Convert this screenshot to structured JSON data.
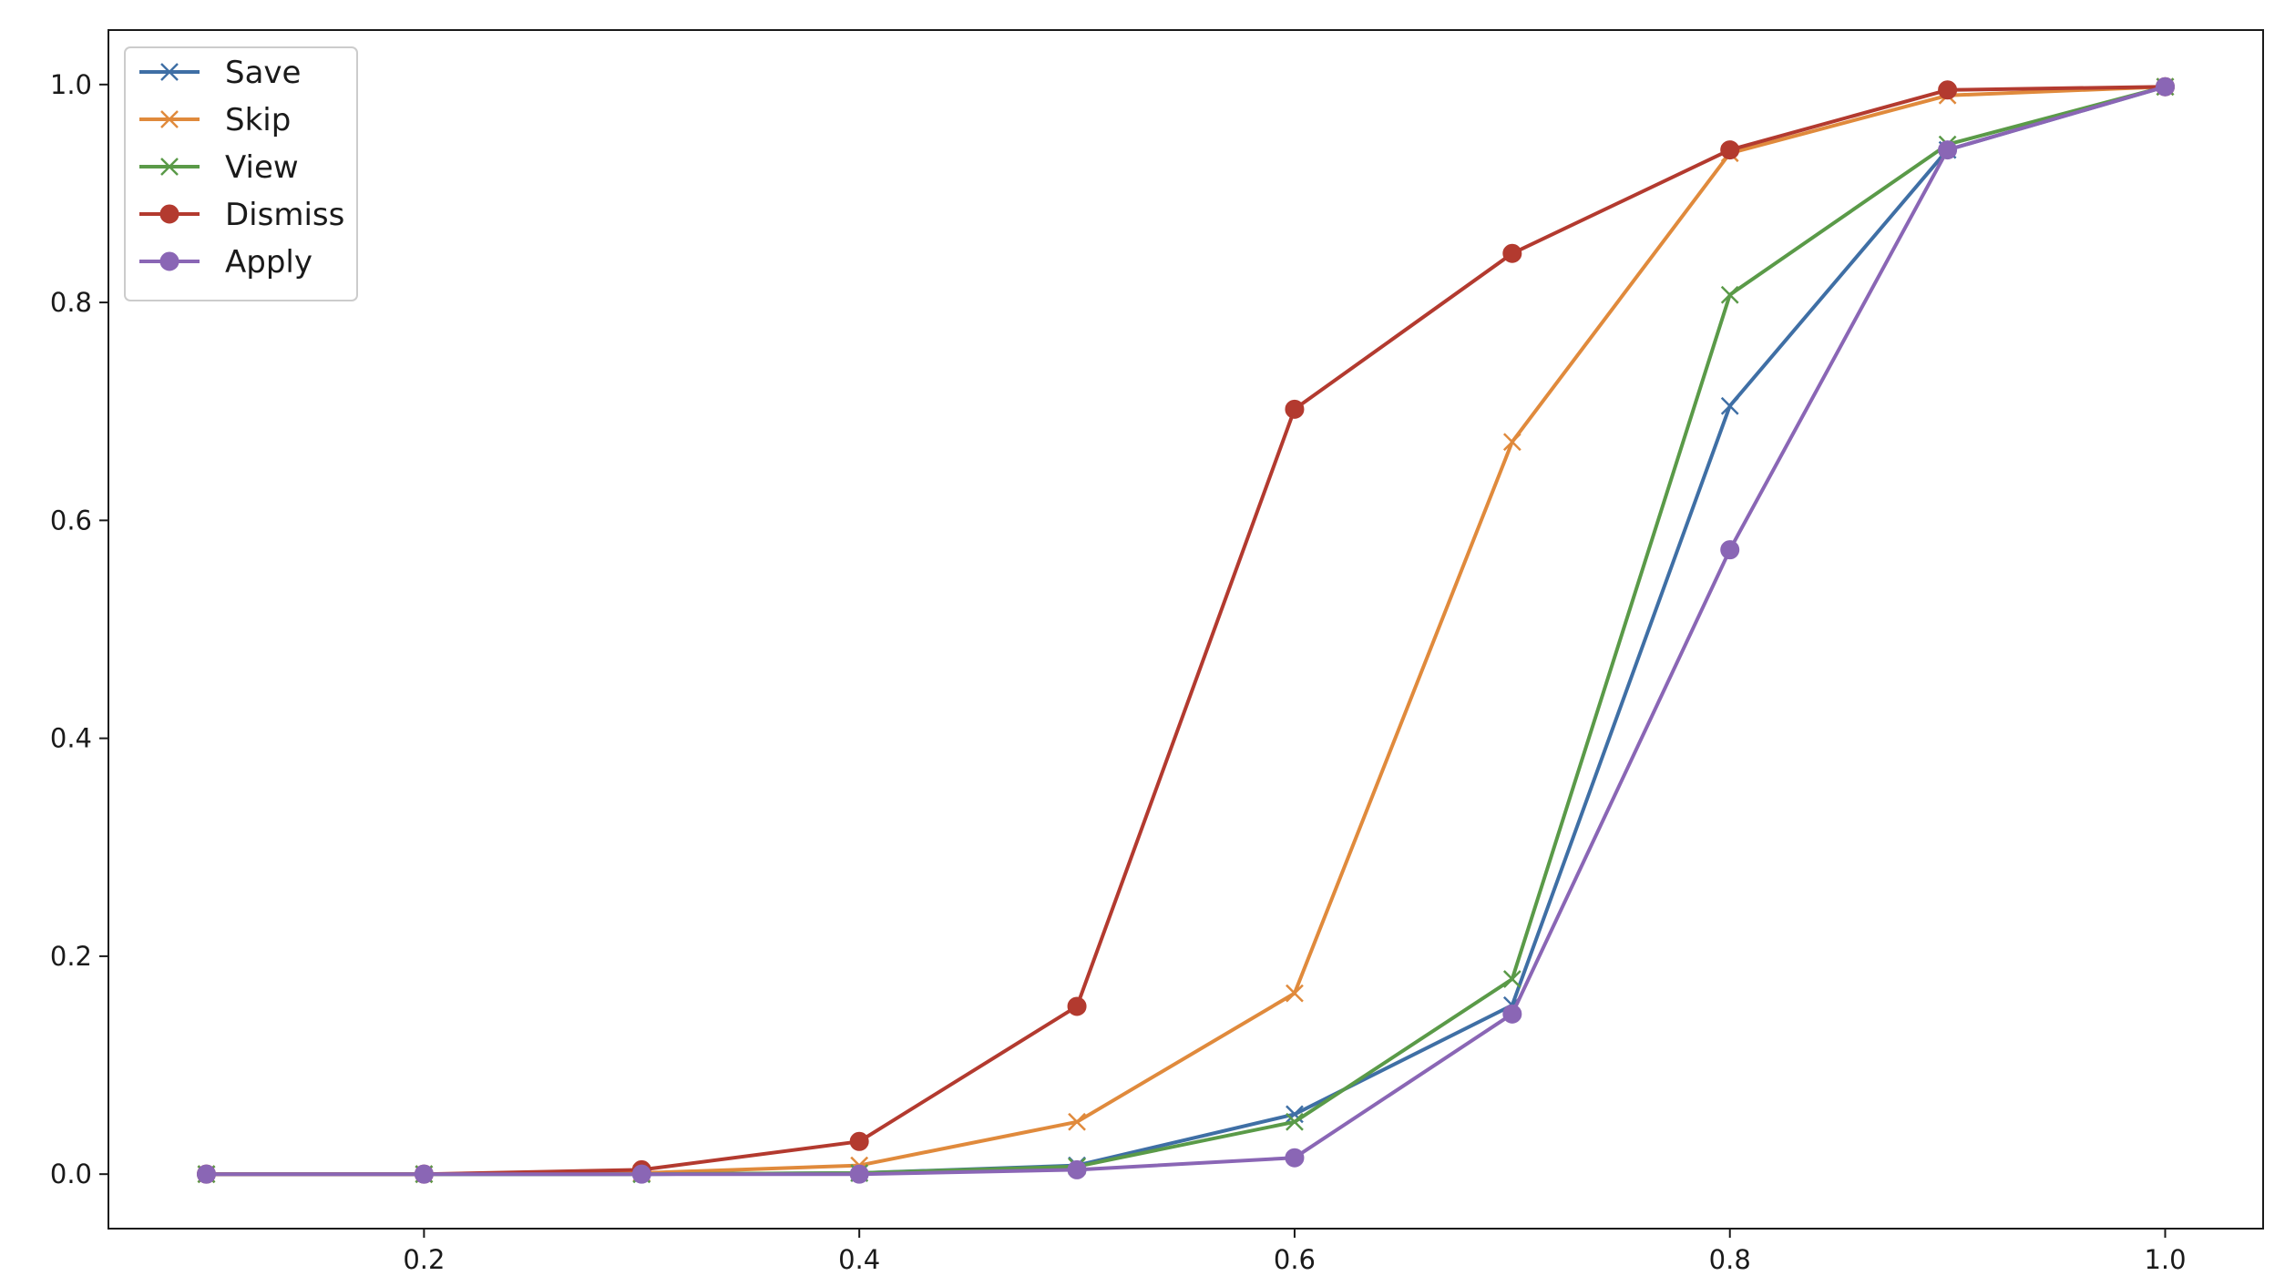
{
  "chart_data": {
    "type": "line",
    "x": [
      0.1,
      0.2,
      0.3,
      0.4,
      0.5,
      0.6,
      0.7,
      0.8,
      0.9,
      1.0
    ],
    "xlim": [
      0.055,
      1.045
    ],
    "ylim": [
      -0.05,
      1.05
    ],
    "xticks": [
      0.2,
      0.4,
      0.6,
      0.8,
      1.0
    ],
    "xtick_labels": [
      "0.2",
      "0.4",
      "0.6",
      "0.8",
      "1.0"
    ],
    "yticks": [
      0.0,
      0.2,
      0.4,
      0.6,
      0.8,
      1.0
    ],
    "ytick_labels": [
      "0.0",
      "0.2",
      "0.4",
      "0.6",
      "0.8",
      "1.0"
    ],
    "title": "",
    "xlabel": "",
    "ylabel": "",
    "grid": false,
    "legend_position": "top-left",
    "series": [
      {
        "name": "Save",
        "color": "#3f6fa5",
        "marker": "x",
        "values": [
          0.0,
          0.0,
          0.0,
          0.001,
          0.008,
          0.055,
          0.155,
          0.705,
          0.94,
          0.998
        ]
      },
      {
        "name": "Skip",
        "color": "#e08a3c",
        "marker": "x",
        "values": [
          0.0,
          0.0,
          0.001,
          0.008,
          0.048,
          0.166,
          0.672,
          0.937,
          0.99,
          0.998
        ]
      },
      {
        "name": "View",
        "color": "#5a9a48",
        "marker": "x",
        "values": [
          0.0,
          0.0,
          0.0,
          0.001,
          0.007,
          0.048,
          0.179,
          0.807,
          0.945,
          0.998
        ]
      },
      {
        "name": "Dismiss",
        "color": "#b33a2f",
        "marker": "o",
        "values": [
          0.0,
          0.0,
          0.004,
          0.03,
          0.154,
          0.702,
          0.845,
          0.94,
          0.995,
          0.998
        ]
      },
      {
        "name": "Apply",
        "color": "#8a66b5",
        "marker": "o",
        "values": [
          0.0,
          0.0,
          0.0,
          0.0,
          0.004,
          0.015,
          0.147,
          0.573,
          0.94,
          0.998
        ]
      }
    ]
  }
}
